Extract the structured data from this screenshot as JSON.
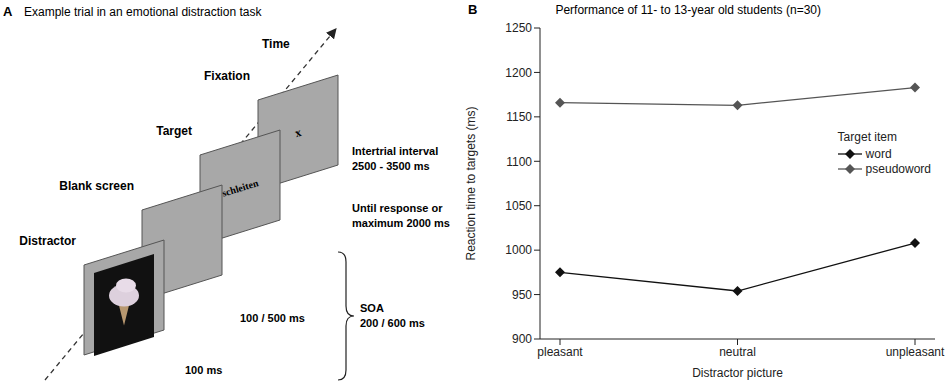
{
  "diagram": {
    "panel_label": "A",
    "title": "Example trial in an emotional distraction task",
    "axis_label": "Time",
    "screens": [
      {
        "label": "Fixation",
        "content": "x",
        "duration": [
          "Intertrial interval",
          "2500 - 3500 ms"
        ]
      },
      {
        "label": "Target",
        "content": "schleiten",
        "duration": [
          "Until response or",
          "maximum 2000 ms"
        ]
      },
      {
        "label": "Blank screen",
        "content": null,
        "duration": [
          "100 / 500 ms"
        ]
      },
      {
        "label": "Distractor",
        "content": "picture",
        "duration": [
          "100 ms"
        ]
      }
    ],
    "soa": [
      "SOA",
      "200 / 600 ms"
    ]
  },
  "chart_data": {
    "type": "line",
    "panel_label": "B",
    "title": "Performance of 11- to 13-year old students (n=30)",
    "x_label": "Distractor picture",
    "y_label": "Reaction time to targets (ms)",
    "categories": [
      "pleasant",
      "neutral",
      "unpleasant"
    ],
    "series": [
      {
        "name": "word",
        "color": "#111111",
        "values": [
          975,
          954,
          1008
        ]
      },
      {
        "name": "pseudoword",
        "color": "#555555",
        "values": [
          1166,
          1163,
          1183
        ]
      }
    ],
    "legend_title": "Target item",
    "legend": "right",
    "marker": "diamond",
    "ylim": [
      900,
      1250
    ],
    "yticks": [
      900,
      950,
      1000,
      1050,
      1100,
      1150,
      1200,
      1250
    ],
    "grid": false
  }
}
